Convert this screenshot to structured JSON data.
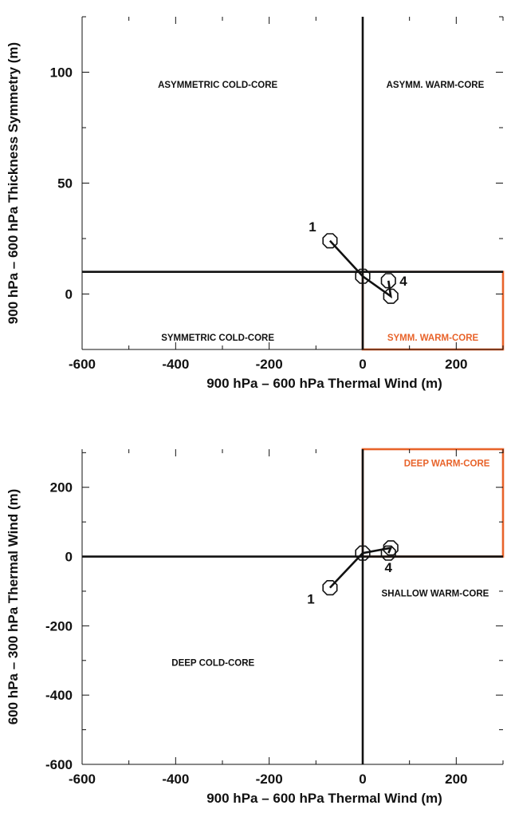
{
  "colors": {
    "highlight": "#e8632a",
    "ink": "#111111"
  },
  "chart_data": [
    {
      "type": "scatter",
      "title": "",
      "xlabel": "900 hPa – 600 hPa Thermal Wind (m)",
      "ylabel": "900 hPa – 600 hPa Thickness Symmetry (m)",
      "xlim": [
        -600,
        300
      ],
      "ylim": [
        -25,
        125
      ],
      "xticks": [
        "-600",
        "-400",
        "-200",
        "0",
        "200"
      ],
      "xtick_values": [
        -600,
        -400,
        -200,
        0,
        200
      ],
      "yticks": [
        "0",
        "50",
        "100"
      ],
      "ytick_values": [
        0,
        50,
        100
      ],
      "x_minor_step": 100,
      "y_minor_step": 25,
      "grid": false,
      "divider_x": 0,
      "divider_y": 10,
      "series": [
        {
          "x": [
            -70,
            0,
            60,
            55
          ],
          "y": [
            24,
            8,
            -1,
            6
          ]
        }
      ],
      "point_labels": [
        {
          "text": "1",
          "index": 0,
          "anchor": "above-left"
        },
        {
          "text": "4",
          "index": 3,
          "anchor": "right"
        }
      ],
      "regions": [
        {
          "text": "ASYMMETRIC COLD-CORE",
          "x": -310,
          "y": 93,
          "highlight": false
        },
        {
          "text": "ASYMM. WARM-CORE",
          "x": 155,
          "y": 93,
          "highlight": false
        },
        {
          "text": "SYMMETRIC COLD-CORE",
          "x": -310,
          "y": -21,
          "highlight": false
        },
        {
          "text": "SYMM. WARM-CORE",
          "x": 150,
          "y": -21,
          "highlight": true
        }
      ],
      "highlight_box": {
        "x0": 0,
        "x1": 300,
        "y0": -25,
        "y1": 10
      }
    },
    {
      "type": "scatter",
      "title": "",
      "xlabel": "900 hPa – 600 hPa Thermal Wind (m)",
      "ylabel": "600 hPa – 300 hPa Thermal Wind (m)",
      "xlim": [
        -600,
        300
      ],
      "ylim": [
        -600,
        310
      ],
      "xticks": [
        "-600",
        "-400",
        "-200",
        "0",
        "200"
      ],
      "xtick_values": [
        -600,
        -400,
        -200,
        0,
        200
      ],
      "yticks": [
        "-600",
        "-400",
        "-200",
        "0",
        "200"
      ],
      "ytick_values": [
        -600,
        -400,
        -200,
        0,
        200
      ],
      "x_minor_step": 100,
      "y_minor_step": 100,
      "grid": false,
      "divider_x": 0,
      "divider_y": 0,
      "series": [
        {
          "x": [
            -70,
            0,
            60,
            55
          ],
          "y": [
            -90,
            10,
            25,
            10
          ]
        }
      ],
      "point_labels": [
        {
          "text": "1",
          "index": 0,
          "anchor": "below-left"
        },
        {
          "text": "4",
          "index": 3,
          "anchor": "below"
        }
      ],
      "regions": [
        {
          "text": "DEEP WARM-CORE",
          "x": 180,
          "y": 260,
          "highlight": true
        },
        {
          "text": "SHALLOW WARM-CORE",
          "x": 155,
          "y": -115,
          "highlight": false
        },
        {
          "text": "DEEP COLD-CORE",
          "x": -320,
          "y": -315,
          "highlight": false
        }
      ],
      "highlight_box": {
        "x0": 0,
        "x1": 300,
        "y0": 0,
        "y1": 310
      }
    }
  ]
}
